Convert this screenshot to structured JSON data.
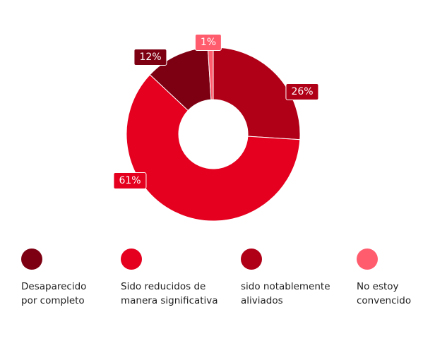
{
  "chart_data": {
    "type": "pie",
    "donut": true,
    "title": "",
    "slices": [
      {
        "name": "sido notablemente aliviados",
        "value": 26,
        "label": "26%",
        "color": "#b00017"
      },
      {
        "name": "Sido reducidos de manera significativa",
        "value": 61,
        "label": "61%",
        "color": "#e4001e"
      },
      {
        "name": "Desaparecido por completo",
        "value": 12,
        "label": "12%",
        "color": "#7d0012"
      },
      {
        "name": "No estoy convencido",
        "value": 1,
        "label": "1%",
        "color": "#ff5c6e"
      }
    ],
    "legend": [
      {
        "line1": "Desaparecido",
        "line2": "por completo",
        "color": "#7d0012"
      },
      {
        "line1": "Sido reducidos de",
        "line2": "manera significativa",
        "color": "#e4001e"
      },
      {
        "line1": "sido notablemente",
        "line2": "aliviados",
        "color": "#b00017"
      },
      {
        "line1": "No estoy",
        "line2": "convencido",
        "color": "#ff5c6e"
      }
    ],
    "legend_position": "bottom"
  }
}
